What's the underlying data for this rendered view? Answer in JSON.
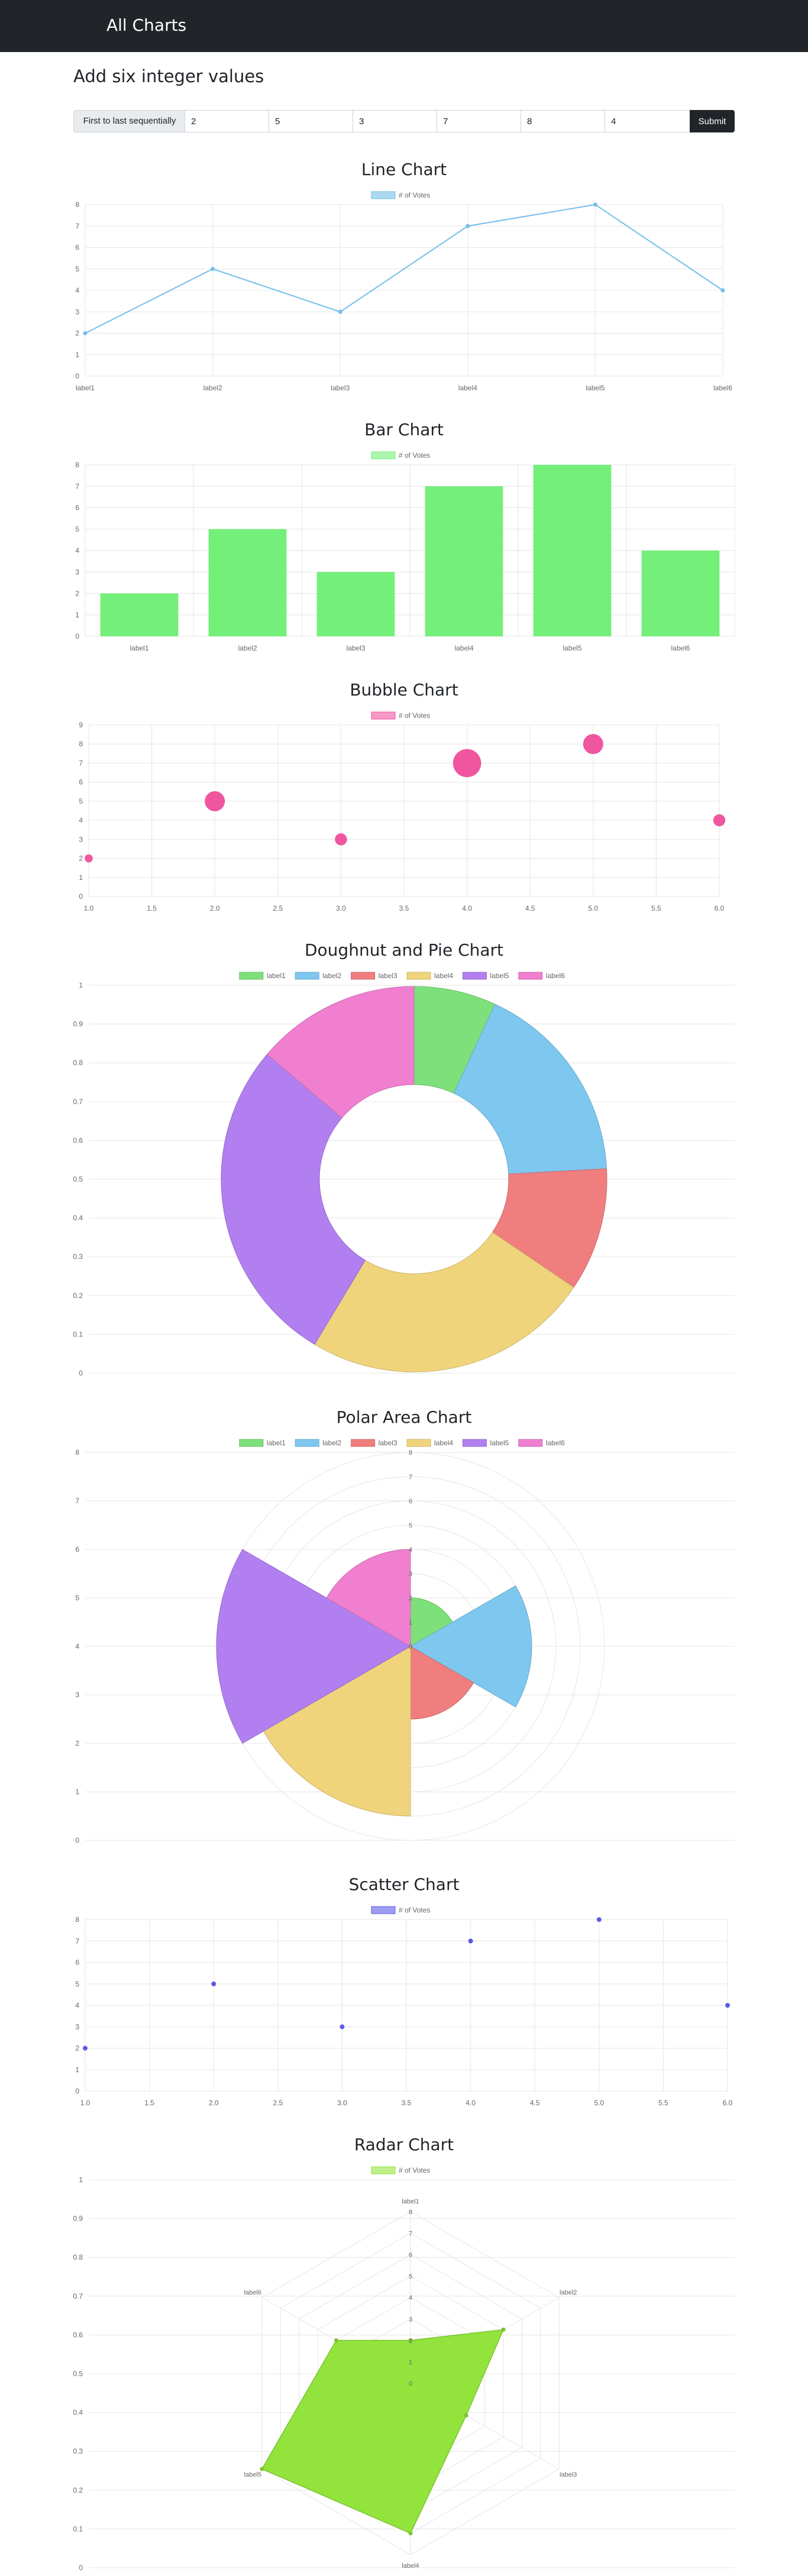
{
  "app": {
    "brand": "All Charts"
  },
  "form": {
    "heading": "Add six integer values",
    "prefix_label": "First to last sequentially",
    "values": [
      "2",
      "5",
      "3",
      "7",
      "8",
      "4"
    ],
    "submit_label": "Submit"
  },
  "colors": {
    "navbar": "#212529",
    "line": "#74bfea",
    "bar": "#74ef7a",
    "bubble": "#f0559f",
    "scatter": "#5a5be6",
    "radar": "#92e43c",
    "segments": [
      "#7de07a",
      "#7ec7ef",
      "#f07e7e",
      "#f0d47c",
      "#b27ff0",
      "#f07fd0"
    ]
  },
  "chart_data": [
    {
      "type": "line",
      "title": "Line Chart",
      "legend": "# of Votes",
      "categories": [
        "label1",
        "label2",
        "label3",
        "label4",
        "label5",
        "label6"
      ],
      "values": [
        2,
        5,
        3,
        7,
        8,
        4
      ],
      "yticks": [
        "0",
        "1",
        "2",
        "3",
        "4",
        "5",
        "6",
        "7",
        "8"
      ],
      "ylim": [
        0,
        8
      ],
      "grid": true
    },
    {
      "type": "bar",
      "title": "Bar Chart",
      "legend": "# of Votes",
      "categories": [
        "label1",
        "label2",
        "label3",
        "label4",
        "label5",
        "label6"
      ],
      "values": [
        2,
        5,
        3,
        7,
        8,
        4
      ],
      "yticks": [
        "0",
        "1",
        "2",
        "3",
        "4",
        "5",
        "6",
        "7",
        "8"
      ],
      "ylim": [
        0,
        8
      ],
      "grid": true
    },
    {
      "type": "scatter",
      "subtype": "bubble",
      "title": "Bubble Chart",
      "legend": "# of Votes",
      "points": [
        {
          "x": 1,
          "y": 2,
          "r": 2
        },
        {
          "x": 2,
          "y": 5,
          "r": 5
        },
        {
          "x": 3,
          "y": 3,
          "r": 3
        },
        {
          "x": 4,
          "y": 7,
          "r": 7
        },
        {
          "x": 5,
          "y": 8,
          "r": 5
        },
        {
          "x": 6,
          "y": 4,
          "r": 3
        }
      ],
      "xticks": [
        "1.0",
        "1.5",
        "2.0",
        "2.5",
        "3.0",
        "3.5",
        "4.0",
        "4.5",
        "5.0",
        "5.5",
        "6.0"
      ],
      "yticks": [
        "0",
        "1",
        "2",
        "3",
        "4",
        "5",
        "6",
        "7",
        "8",
        "9"
      ],
      "xlim": [
        1,
        6
      ],
      "ylim": [
        0,
        9
      ],
      "grid": true
    },
    {
      "type": "pie",
      "subtype": "doughnut",
      "title": "Doughnut and Pie Chart",
      "legend": [
        "label1",
        "label2",
        "label3",
        "label4",
        "label5",
        "label6"
      ],
      "values": [
        2,
        5,
        3,
        7,
        8,
        4
      ],
      "yticks": [
        "0",
        "0.1",
        "0.2",
        "0.3",
        "0.4",
        "0.5",
        "0.6",
        "0.7",
        "0.8",
        "0.9",
        "1"
      ],
      "grid": true
    },
    {
      "type": "pie",
      "subtype": "polar-area",
      "title": "Polar Area Chart",
      "legend": [
        "label1",
        "label2",
        "label3",
        "label4",
        "label5",
        "label6"
      ],
      "values": [
        2,
        5,
        3,
        7,
        8,
        4
      ],
      "rticks": [
        "0",
        "1",
        "2",
        "3",
        "4",
        "5",
        "6",
        "7",
        "8"
      ],
      "yticks": [
        "0",
        "1",
        "2",
        "3",
        "4",
        "5",
        "6",
        "7",
        "8"
      ],
      "grid": true
    },
    {
      "type": "scatter",
      "title": "Scatter Chart",
      "legend": "# of Votes",
      "points": [
        {
          "x": 1,
          "y": 2
        },
        {
          "x": 2,
          "y": 5
        },
        {
          "x": 3,
          "y": 3
        },
        {
          "x": 4,
          "y": 7
        },
        {
          "x": 5,
          "y": 8
        },
        {
          "x": 6,
          "y": 4
        }
      ],
      "xticks": [
        "1.0",
        "1.5",
        "2.0",
        "2.5",
        "3.0",
        "3.5",
        "4.0",
        "4.5",
        "5.0",
        "5.5",
        "6.0"
      ],
      "yticks": [
        "0",
        "1",
        "2",
        "3",
        "4",
        "5",
        "6",
        "7",
        "8"
      ],
      "xlim": [
        1,
        6
      ],
      "ylim": [
        0,
        8
      ],
      "grid": true
    },
    {
      "type": "radar",
      "title": "Radar Chart",
      "legend": "# of Votes",
      "categories": [
        "label1",
        "label2",
        "label3",
        "label4",
        "label5",
        "label6"
      ],
      "values": [
        2,
        5,
        3,
        7,
        8,
        4
      ],
      "rticks": [
        "0",
        "1",
        "2",
        "3",
        "4",
        "5",
        "6",
        "7",
        "8"
      ],
      "yticks": [
        "0",
        "0.1",
        "0.2",
        "0.3",
        "0.4",
        "0.5",
        "0.6",
        "0.7",
        "0.8",
        "0.9",
        "1"
      ],
      "grid": true
    }
  ]
}
